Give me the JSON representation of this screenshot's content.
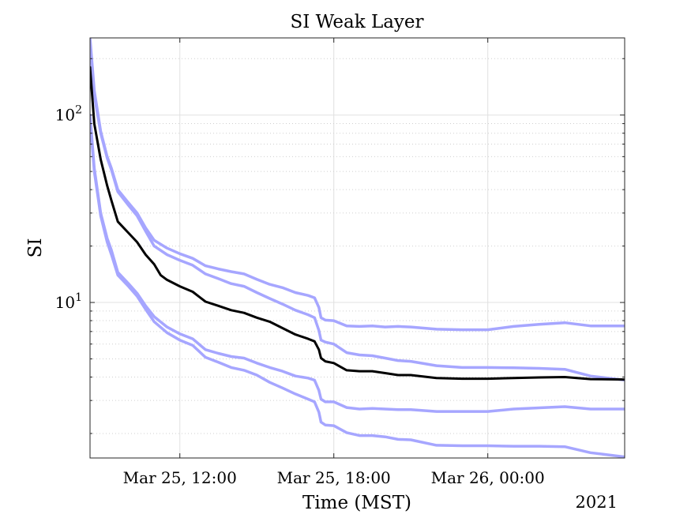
{
  "chart_data": {
    "type": "line",
    "title": "SI Weak Layer",
    "xlabel": "Time (MST)",
    "ylabel": "SI",
    "year_label": "2021",
    "x_ticks": [
      {
        "t": "2021-03-25T12:00",
        "label": "Mar 25, 12:00"
      },
      {
        "t": "2021-03-25T18:00",
        "label": "Mar 25, 18:00"
      },
      {
        "t": "2021-03-26T00:00",
        "label": "Mar 26, 00:00"
      }
    ],
    "y_ticks": [
      {
        "value": 10,
        "base": "10",
        "exp": "1"
      },
      {
        "value": 100,
        "base": "10",
        "exp": "2"
      }
    ],
    "xlim": [
      "2021-03-25T08:30",
      "2021-03-26T05:20"
    ],
    "ylim": [
      1.48,
      258
    ],
    "yscale": "log",
    "grid": true,
    "colors": {
      "median": "#000000",
      "bounds": "#a6a6ff"
    },
    "series": [
      {
        "role": "upper-outer",
        "color": "#a6a6ff",
        "points": [
          [
            "2021-03-25T08:30",
            258
          ],
          [
            "2021-03-25T08:40",
            135
          ],
          [
            "2021-03-25T08:55",
            82
          ],
          [
            "2021-03-25T09:10",
            60
          ],
          [
            "2021-03-25T09:20",
            52
          ],
          [
            "2021-03-25T09:35",
            40
          ],
          [
            "2021-03-25T10:00",
            34
          ],
          [
            "2021-03-25T10:20",
            30
          ],
          [
            "2021-03-25T10:40",
            25
          ],
          [
            "2021-03-25T11:00",
            21.5
          ],
          [
            "2021-03-25T11:30",
            19.5
          ],
          [
            "2021-03-25T12:00",
            18.2
          ],
          [
            "2021-03-25T12:30",
            17.2
          ],
          [
            "2021-03-25T13:00",
            15.7
          ],
          [
            "2021-03-25T13:30",
            15.1
          ],
          [
            "2021-03-25T14:00",
            14.6
          ],
          [
            "2021-03-25T14:30",
            14.2
          ],
          [
            "2021-03-25T15:00",
            13.3
          ],
          [
            "2021-03-25T15:30",
            12.5
          ],
          [
            "2021-03-25T16:00",
            12.0
          ],
          [
            "2021-03-25T16:30",
            11.3
          ],
          [
            "2021-03-25T17:00",
            10.9
          ],
          [
            "2021-03-25T17:15",
            10.6
          ],
          [
            "2021-03-25T17:25",
            9.4
          ],
          [
            "2021-03-25T17:30",
            8.3
          ],
          [
            "2021-03-25T17:40",
            8.05
          ],
          [
            "2021-03-25T18:00",
            8.0
          ],
          [
            "2021-03-25T18:30",
            7.5
          ],
          [
            "2021-03-25T19:00",
            7.45
          ],
          [
            "2021-03-25T19:30",
            7.5
          ],
          [
            "2021-03-25T20:00",
            7.4
          ],
          [
            "2021-03-25T20:30",
            7.45
          ],
          [
            "2021-03-25T21:00",
            7.4
          ],
          [
            "2021-03-25T22:00",
            7.2
          ],
          [
            "2021-03-25T23:00",
            7.15
          ],
          [
            "2021-03-26T00:00",
            7.15
          ],
          [
            "2021-03-26T01:00",
            7.45
          ],
          [
            "2021-03-26T02:00",
            7.65
          ],
          [
            "2021-03-26T03:00",
            7.8
          ],
          [
            "2021-03-26T04:00",
            7.5
          ],
          [
            "2021-03-26T05:20",
            7.5
          ]
        ]
      },
      {
        "role": "upper-inner",
        "color": "#a6a6ff",
        "points": [
          [
            "2021-03-25T08:30",
            248
          ],
          [
            "2021-03-25T08:40",
            128
          ],
          [
            "2021-03-25T08:55",
            80
          ],
          [
            "2021-03-25T09:10",
            59
          ],
          [
            "2021-03-25T09:20",
            51
          ],
          [
            "2021-03-25T09:35",
            39
          ],
          [
            "2021-03-25T10:00",
            33
          ],
          [
            "2021-03-25T10:20",
            29
          ],
          [
            "2021-03-25T10:40",
            24
          ],
          [
            "2021-03-25T11:00",
            20
          ],
          [
            "2021-03-25T11:30",
            18
          ],
          [
            "2021-03-25T12:00",
            16.8
          ],
          [
            "2021-03-25T12:30",
            15.8
          ],
          [
            "2021-03-25T13:00",
            14.2
          ],
          [
            "2021-03-25T13:30",
            13.4
          ],
          [
            "2021-03-25T14:00",
            12.6
          ],
          [
            "2021-03-25T14:30",
            12.2
          ],
          [
            "2021-03-25T15:00",
            11.3
          ],
          [
            "2021-03-25T15:30",
            10.5
          ],
          [
            "2021-03-25T16:00",
            9.8
          ],
          [
            "2021-03-25T16:30",
            9.1
          ],
          [
            "2021-03-25T17:00",
            8.6
          ],
          [
            "2021-03-25T17:15",
            8.3
          ],
          [
            "2021-03-25T17:25",
            7.1
          ],
          [
            "2021-03-25T17:30",
            6.3
          ],
          [
            "2021-03-25T17:40",
            6.15
          ],
          [
            "2021-03-25T18:00",
            6.0
          ],
          [
            "2021-03-25T18:30",
            5.4
          ],
          [
            "2021-03-25T19:00",
            5.25
          ],
          [
            "2021-03-25T19:30",
            5.2
          ],
          [
            "2021-03-25T20:00",
            5.05
          ],
          [
            "2021-03-25T20:30",
            4.9
          ],
          [
            "2021-03-25T21:00",
            4.85
          ],
          [
            "2021-03-25T22:00",
            4.6
          ],
          [
            "2021-03-25T23:00",
            4.5
          ],
          [
            "2021-03-26T00:00",
            4.5
          ],
          [
            "2021-03-26T01:00",
            4.48
          ],
          [
            "2021-03-26T02:00",
            4.45
          ],
          [
            "2021-03-26T03:00",
            4.4
          ],
          [
            "2021-03-26T04:00",
            4.05
          ],
          [
            "2021-03-26T05:20",
            3.85
          ]
        ]
      },
      {
        "role": "median",
        "color": "#000000",
        "points": [
          [
            "2021-03-25T08:30",
            180
          ],
          [
            "2021-03-25T08:40",
            90
          ],
          [
            "2021-03-25T08:55",
            58
          ],
          [
            "2021-03-25T09:10",
            42
          ],
          [
            "2021-03-25T09:20",
            35
          ],
          [
            "2021-03-25T09:35",
            27
          ],
          [
            "2021-03-25T10:00",
            23.5
          ],
          [
            "2021-03-25T10:20",
            21
          ],
          [
            "2021-03-25T10:40",
            18
          ],
          [
            "2021-03-25T11:00",
            16
          ],
          [
            "2021-03-25T11:15",
            14
          ],
          [
            "2021-03-25T11:30",
            13.2
          ],
          [
            "2021-03-25T12:00",
            12.2
          ],
          [
            "2021-03-25T12:30",
            11.4
          ],
          [
            "2021-03-25T13:00",
            10.1
          ],
          [
            "2021-03-25T13:30",
            9.6
          ],
          [
            "2021-03-25T14:00",
            9.1
          ],
          [
            "2021-03-25T14:30",
            8.8
          ],
          [
            "2021-03-25T15:00",
            8.3
          ],
          [
            "2021-03-25T15:30",
            7.9
          ],
          [
            "2021-03-25T16:00",
            7.3
          ],
          [
            "2021-03-25T16:30",
            6.75
          ],
          [
            "2021-03-25T17:00",
            6.4
          ],
          [
            "2021-03-25T17:15",
            6.2
          ],
          [
            "2021-03-25T17:25",
            5.6
          ],
          [
            "2021-03-25T17:30",
            5.05
          ],
          [
            "2021-03-25T17:40",
            4.85
          ],
          [
            "2021-03-25T18:00",
            4.75
          ],
          [
            "2021-03-25T18:30",
            4.35
          ],
          [
            "2021-03-25T19:00",
            4.3
          ],
          [
            "2021-03-25T19:30",
            4.3
          ],
          [
            "2021-03-25T20:00",
            4.2
          ],
          [
            "2021-03-25T20:30",
            4.1
          ],
          [
            "2021-03-25T21:00",
            4.1
          ],
          [
            "2021-03-25T22:00",
            3.95
          ],
          [
            "2021-03-25T23:00",
            3.92
          ],
          [
            "2021-03-26T00:00",
            3.92
          ],
          [
            "2021-03-26T01:00",
            3.95
          ],
          [
            "2021-03-26T02:00",
            3.98
          ],
          [
            "2021-03-26T03:00",
            4.0
          ],
          [
            "2021-03-26T04:00",
            3.9
          ],
          [
            "2021-03-26T05:20",
            3.88
          ]
        ]
      },
      {
        "role": "lower-inner",
        "color": "#a6a6ff",
        "points": [
          [
            "2021-03-25T08:30",
            100
          ],
          [
            "2021-03-25T08:40",
            52
          ],
          [
            "2021-03-25T08:55",
            30
          ],
          [
            "2021-03-25T09:10",
            22
          ],
          [
            "2021-03-25T09:20",
            19
          ],
          [
            "2021-03-25T09:35",
            14.5
          ],
          [
            "2021-03-25T10:00",
            12.6
          ],
          [
            "2021-03-25T10:20",
            11.2
          ],
          [
            "2021-03-25T10:40",
            9.6
          ],
          [
            "2021-03-25T11:00",
            8.4
          ],
          [
            "2021-03-25T11:30",
            7.4
          ],
          [
            "2021-03-25T12:00",
            6.8
          ],
          [
            "2021-03-25T12:30",
            6.4
          ],
          [
            "2021-03-25T13:00",
            5.6
          ],
          [
            "2021-03-25T13:30",
            5.35
          ],
          [
            "2021-03-25T14:00",
            5.15
          ],
          [
            "2021-03-25T14:30",
            5.05
          ],
          [
            "2021-03-25T15:00",
            4.75
          ],
          [
            "2021-03-25T15:30",
            4.5
          ],
          [
            "2021-03-25T16:00",
            4.3
          ],
          [
            "2021-03-25T16:30",
            4.05
          ],
          [
            "2021-03-25T17:00",
            3.95
          ],
          [
            "2021-03-25T17:15",
            3.85
          ],
          [
            "2021-03-25T17:25",
            3.4
          ],
          [
            "2021-03-25T17:30",
            3.05
          ],
          [
            "2021-03-25T17:40",
            2.95
          ],
          [
            "2021-03-25T18:00",
            2.95
          ],
          [
            "2021-03-25T18:30",
            2.75
          ],
          [
            "2021-03-25T19:00",
            2.7
          ],
          [
            "2021-03-25T19:30",
            2.72
          ],
          [
            "2021-03-25T20:00",
            2.7
          ],
          [
            "2021-03-25T20:30",
            2.68
          ],
          [
            "2021-03-25T21:00",
            2.68
          ],
          [
            "2021-03-25T22:00",
            2.62
          ],
          [
            "2021-03-25T23:00",
            2.62
          ],
          [
            "2021-03-26T00:00",
            2.62
          ],
          [
            "2021-03-26T01:00",
            2.7
          ],
          [
            "2021-03-26T02:00",
            2.74
          ],
          [
            "2021-03-26T03:00",
            2.78
          ],
          [
            "2021-03-26T04:00",
            2.7
          ],
          [
            "2021-03-26T05:20",
            2.7
          ]
        ]
      },
      {
        "role": "lower-outer",
        "color": "#a6a6ff",
        "points": [
          [
            "2021-03-25T08:30",
            95
          ],
          [
            "2021-03-25T08:40",
            50
          ],
          [
            "2021-03-25T08:55",
            29
          ],
          [
            "2021-03-25T09:10",
            21
          ],
          [
            "2021-03-25T09:20",
            18
          ],
          [
            "2021-03-25T09:35",
            14
          ],
          [
            "2021-03-25T10:00",
            12.2
          ],
          [
            "2021-03-25T10:20",
            10.8
          ],
          [
            "2021-03-25T10:40",
            9.2
          ],
          [
            "2021-03-25T11:00",
            7.9
          ],
          [
            "2021-03-25T11:30",
            6.9
          ],
          [
            "2021-03-25T12:00",
            6.3
          ],
          [
            "2021-03-25T12:30",
            5.9
          ],
          [
            "2021-03-25T13:00",
            5.1
          ],
          [
            "2021-03-25T13:30",
            4.8
          ],
          [
            "2021-03-25T14:00",
            4.5
          ],
          [
            "2021-03-25T14:30",
            4.35
          ],
          [
            "2021-03-25T15:00",
            4.1
          ],
          [
            "2021-03-25T15:30",
            3.75
          ],
          [
            "2021-03-25T16:00",
            3.5
          ],
          [
            "2021-03-25T16:30",
            3.25
          ],
          [
            "2021-03-25T17:00",
            3.05
          ],
          [
            "2021-03-25T17:15",
            2.95
          ],
          [
            "2021-03-25T17:25",
            2.6
          ],
          [
            "2021-03-25T17:30",
            2.3
          ],
          [
            "2021-03-25T17:40",
            2.22
          ],
          [
            "2021-03-25T18:00",
            2.2
          ],
          [
            "2021-03-25T18:30",
            2.02
          ],
          [
            "2021-03-25T19:00",
            1.95
          ],
          [
            "2021-03-25T19:30",
            1.95
          ],
          [
            "2021-03-25T20:00",
            1.92
          ],
          [
            "2021-03-25T20:30",
            1.86
          ],
          [
            "2021-03-25T21:00",
            1.85
          ],
          [
            "2021-03-25T22:00",
            1.73
          ],
          [
            "2021-03-25T23:00",
            1.72
          ],
          [
            "2021-03-26T00:00",
            1.72
          ],
          [
            "2021-03-26T01:00",
            1.71
          ],
          [
            "2021-03-26T02:00",
            1.71
          ],
          [
            "2021-03-26T03:00",
            1.7
          ],
          [
            "2021-03-26T04:00",
            1.58
          ],
          [
            "2021-03-26T05:20",
            1.5
          ]
        ]
      }
    ]
  }
}
